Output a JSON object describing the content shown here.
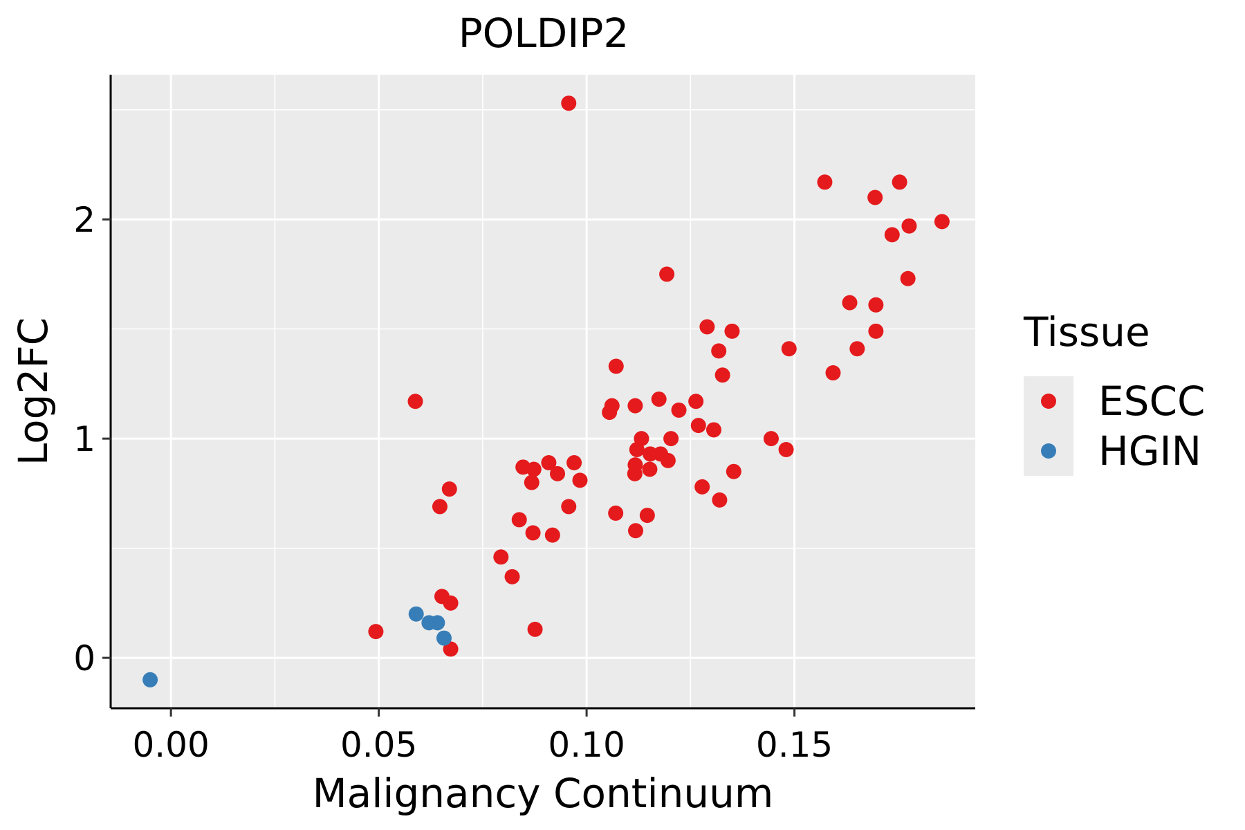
{
  "chart_data": {
    "type": "scatter",
    "title": "POLDIP2",
    "xlabel": "Malignancy Continuum",
    "ylabel": "Log2FC",
    "xlim": [
      -0.0145,
      0.1935
    ],
    "ylim": [
      -0.23,
      2.66
    ],
    "x_ticks": [
      0.0,
      0.05,
      0.1,
      0.15
    ],
    "x_tick_labels": [
      "0.00",
      "0.05",
      "0.10",
      "0.15"
    ],
    "y_ticks": [
      0,
      1,
      2
    ],
    "y_tick_labels": [
      "0",
      "1",
      "2"
    ],
    "grid": true,
    "legend": {
      "title": "Tissue",
      "position": "right",
      "entries": [
        {
          "label": "ESCC",
          "color": "#E41A1C"
        },
        {
          "label": "HGIN",
          "color": "#377EB8"
        }
      ]
    },
    "series": [
      {
        "name": "ESCC",
        "color": "#E41A1C",
        "points": [
          [
            0.0957,
            2.53
          ],
          [
            0.1573,
            2.17
          ],
          [
            0.1753,
            2.17
          ],
          [
            0.1694,
            2.1
          ],
          [
            0.1855,
            1.99
          ],
          [
            0.1776,
            1.97
          ],
          [
            0.1735,
            1.93
          ],
          [
            0.1193,
            1.75
          ],
          [
            0.1633,
            1.62
          ],
          [
            0.1696,
            1.61
          ],
          [
            0.1773,
            1.73
          ],
          [
            0.129,
            1.51
          ],
          [
            0.135,
            1.49
          ],
          [
            0.1696,
            1.49
          ],
          [
            0.1318,
            1.4
          ],
          [
            0.1487,
            1.41
          ],
          [
            0.1651,
            1.41
          ],
          [
            0.1071,
            1.33
          ],
          [
            0.1593,
            1.3
          ],
          [
            0.1327,
            1.29
          ],
          [
            0.0588,
            1.17
          ],
          [
            0.1061,
            1.15
          ],
          [
            0.1117,
            1.15
          ],
          [
            0.1055,
            1.12
          ],
          [
            0.1174,
            1.18
          ],
          [
            0.1222,
            1.13
          ],
          [
            0.1263,
            1.17
          ],
          [
            0.1269,
            1.06
          ],
          [
            0.1306,
            1.04
          ],
          [
            0.1132,
            1.0
          ],
          [
            0.1203,
            1.0
          ],
          [
            0.1444,
            1.0
          ],
          [
            0.148,
            0.95
          ],
          [
            0.1121,
            0.95
          ],
          [
            0.1153,
            0.93
          ],
          [
            0.1178,
            0.93
          ],
          [
            0.1196,
            0.9
          ],
          [
            0.1117,
            0.88
          ],
          [
            0.1152,
            0.86
          ],
          [
            0.1116,
            0.84
          ],
          [
            0.0847,
            0.87
          ],
          [
            0.0873,
            0.86
          ],
          [
            0.0909,
            0.89
          ],
          [
            0.097,
            0.89
          ],
          [
            0.093,
            0.84
          ],
          [
            0.0984,
            0.81
          ],
          [
            0.0868,
            0.8
          ],
          [
            0.1354,
            0.85
          ],
          [
            0.1278,
            0.78
          ],
          [
            0.132,
            0.72
          ],
          [
            0.067,
            0.77
          ],
          [
            0.0647,
            0.69
          ],
          [
            0.0957,
            0.69
          ],
          [
            0.107,
            0.66
          ],
          [
            0.1146,
            0.65
          ],
          [
            0.0838,
            0.63
          ],
          [
            0.1118,
            0.58
          ],
          [
            0.0871,
            0.57
          ],
          [
            0.0918,
            0.56
          ],
          [
            0.0794,
            0.46
          ],
          [
            0.0821,
            0.37
          ],
          [
            0.0652,
            0.28
          ],
          [
            0.0673,
            0.25
          ],
          [
            0.0493,
            0.12
          ],
          [
            0.0876,
            0.13
          ],
          [
            0.0673,
            0.04
          ]
        ]
      },
      {
        "name": "HGIN",
        "color": "#377EB8",
        "points": [
          [
            -0.005,
            -0.1
          ],
          [
            0.059,
            0.2
          ],
          [
            0.0621,
            0.16
          ],
          [
            0.0641,
            0.16
          ],
          [
            0.0657,
            0.09
          ]
        ]
      }
    ]
  }
}
